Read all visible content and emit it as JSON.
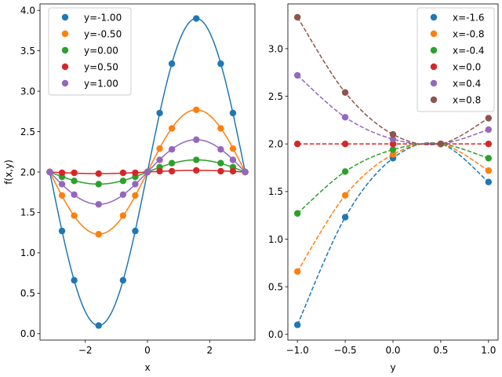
{
  "chart_data": [
    {
      "type": "line",
      "title": "",
      "xlabel": "x",
      "ylabel": "f(x,y)",
      "xlim": [
        -3.456,
        3.456
      ],
      "ylim": [
        -0.08,
        4.08
      ],
      "xticks": [
        -2,
        0,
        2
      ],
      "xtick_labels": [
        "−2",
        "0",
        "2"
      ],
      "yticks": [
        0.0,
        0.5,
        1.0,
        1.5,
        2.0,
        2.5,
        3.0,
        3.5,
        4.0
      ],
      "ytick_labels": [
        "0.0",
        "0.5",
        "1.0",
        "1.5",
        "2.0",
        "2.5",
        "3.0",
        "3.5",
        "4.0"
      ],
      "grid": false,
      "legend_position": "top-left",
      "marker_x": [
        -3.1416,
        -2.7489,
        -2.3562,
        -1.5708,
        -0.7854,
        -0.3927,
        0.0,
        0.3927,
        0.7854,
        1.5708,
        2.3562,
        2.7489,
        3.1416
      ],
      "series": [
        {
          "name": "y=-1.00",
          "color": "#1f77b4",
          "amplitude": 1.9,
          "values": [
            2.0,
            1.27,
            0.66,
            0.1,
            0.66,
            1.27,
            2.0,
            2.73,
            3.34,
            3.9,
            3.34,
            2.73,
            2.0
          ]
        },
        {
          "name": "y=-0.50",
          "color": "#ff7f0e",
          "amplitude": 0.77,
          "values": [
            2.0,
            1.71,
            1.46,
            1.23,
            1.46,
            1.71,
            2.0,
            2.29,
            2.54,
            2.77,
            2.54,
            2.29,
            2.0
          ]
        },
        {
          "name": "y=0.00",
          "color": "#2ca02c",
          "amplitude": 0.15,
          "values": [
            2.0,
            1.94,
            1.89,
            1.85,
            1.89,
            1.94,
            2.0,
            2.06,
            2.11,
            2.15,
            2.11,
            2.06,
            2.0
          ]
        },
        {
          "name": "y=0.50",
          "color": "#d62728",
          "amplitude": 0.02,
          "values": [
            2.0,
            1.99,
            1.99,
            1.98,
            1.99,
            1.99,
            2.0,
            2.01,
            2.01,
            2.02,
            2.01,
            2.01,
            2.0
          ]
        },
        {
          "name": "y=1.00",
          "color": "#9467bd",
          "amplitude": 0.4,
          "values": [
            2.0,
            1.85,
            1.72,
            1.6,
            1.72,
            1.85,
            2.0,
            2.15,
            2.28,
            2.4,
            2.28,
            2.15,
            2.0
          ]
        }
      ]
    },
    {
      "type": "line",
      "title": "",
      "xlabel": "y",
      "ylabel": "",
      "xlim": [
        -1.1,
        1.1
      ],
      "ylim": [
        -0.06,
        3.47
      ],
      "xticks": [
        -1.0,
        -0.5,
        0.0,
        0.5,
        1.0
      ],
      "xtick_labels": [
        "−1.0",
        "−0.5",
        "0.0",
        "0.5",
        "1.0"
      ],
      "yticks": [
        0.0,
        0.5,
        1.0,
        1.5,
        2.0,
        2.5,
        3.0
      ],
      "ytick_labels": [
        "0.0",
        "0.5",
        "1.0",
        "1.5",
        "2.0",
        "2.5",
        "3.0"
      ],
      "grid": false,
      "legend_position": "top-right",
      "line_style": "dashed",
      "marker_x": [
        -1.0,
        -0.5,
        0.0,
        0.5,
        1.0
      ],
      "series": [
        {
          "name": "x=-1.6",
          "color": "#1f77b4",
          "values": [
            0.1,
            1.23,
            1.85,
            2.0,
            1.6
          ]
        },
        {
          "name": "x=-0.8",
          "color": "#ff7f0e",
          "values": [
            0.66,
            1.46,
            1.89,
            2.0,
            1.72
          ]
        },
        {
          "name": "x=-0.4",
          "color": "#2ca02c",
          "values": [
            1.27,
            1.71,
            1.94,
            2.0,
            1.85
          ]
        },
        {
          "name": "x=0.0",
          "color": "#d62728",
          "values": [
            2.0,
            2.0,
            2.0,
            2.0,
            2.0
          ]
        },
        {
          "name": "x=0.4",
          "color": "#9467bd",
          "values": [
            2.72,
            2.28,
            2.05,
            2.0,
            2.15
          ]
        },
        {
          "name": "x=0.8",
          "color": "#8c564b",
          "values": [
            3.33,
            2.54,
            2.1,
            2.0,
            2.27
          ]
        }
      ]
    }
  ]
}
